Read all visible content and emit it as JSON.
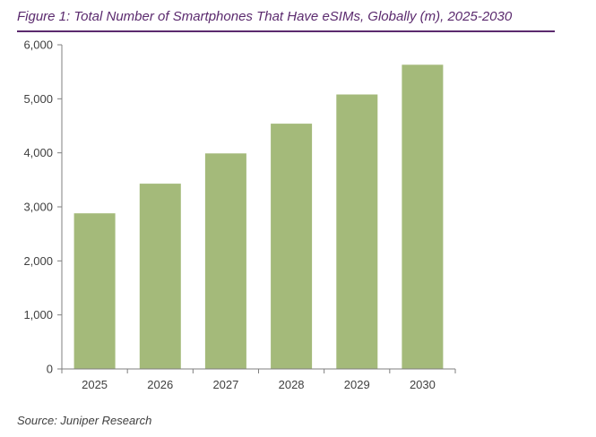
{
  "figure": {
    "title": "Figure 1: Total Number of Smartphones That Have eSIMs, Globally (m), 2025-2030",
    "source": "Source: Juniper Research"
  },
  "colors": {
    "bar": "#a4ba7a",
    "title": "#5b2a6e",
    "axis": "#7f7f7f",
    "text": "#404040"
  },
  "chart_data": {
    "type": "bar",
    "categories": [
      "2025",
      "2026",
      "2027",
      "2028",
      "2029",
      "2030"
    ],
    "values": [
      2880,
      3430,
      3990,
      4540,
      5080,
      5630
    ],
    "yticks": [
      "0",
      "1,000",
      "2,000",
      "3,000",
      "4,000",
      "5,000",
      "6,000"
    ],
    "ylim": [
      0,
      6000
    ],
    "xlabel": "",
    "ylabel": "",
    "grid": false,
    "legend": "none"
  }
}
